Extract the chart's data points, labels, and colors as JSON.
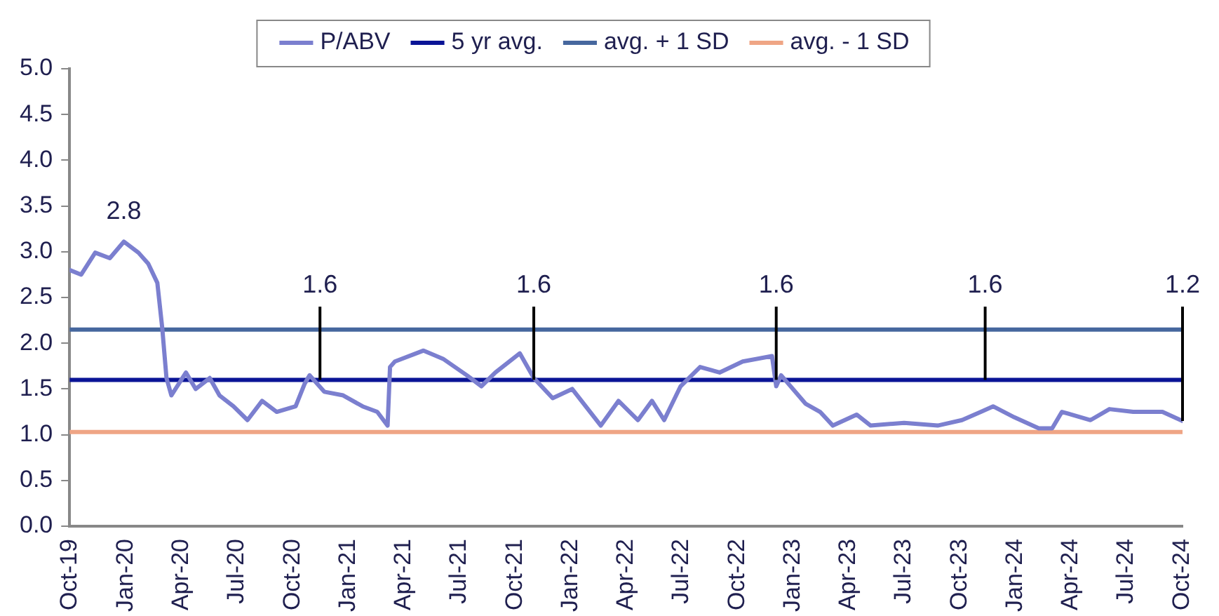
{
  "chart_data": {
    "type": "line",
    "xlim": [
      "2019-10",
      "2024-10"
    ],
    "xticks": [
      {
        "value": "2019-10",
        "label": "Oct-19"
      },
      {
        "value": "2020-01",
        "label": "Jan-20"
      },
      {
        "value": "2020-04",
        "label": "Apr-20"
      },
      {
        "value": "2020-07",
        "label": "Jul-20"
      },
      {
        "value": "2020-10",
        "label": "Oct-20"
      },
      {
        "value": "2021-01",
        "label": "Jan-21"
      },
      {
        "value": "2021-04",
        "label": "Apr-21"
      },
      {
        "value": "2021-07",
        "label": "Jul-21"
      },
      {
        "value": "2021-10",
        "label": "Oct-21"
      },
      {
        "value": "2022-01",
        "label": "Jan-22"
      },
      {
        "value": "2022-04",
        "label": "Apr-22"
      },
      {
        "value": "2022-07",
        "label": "Jul-22"
      },
      {
        "value": "2022-10",
        "label": "Oct-22"
      },
      {
        "value": "2023-01",
        "label": "Jan-23"
      },
      {
        "value": "2023-04",
        "label": "Apr-23"
      },
      {
        "value": "2023-07",
        "label": "Jul-23"
      },
      {
        "value": "2023-10",
        "label": "Oct-23"
      },
      {
        "value": "2024-01",
        "label": "Jan-24"
      },
      {
        "value": "2024-04",
        "label": "Apr-24"
      },
      {
        "value": "2024-07",
        "label": "Jul-24"
      },
      {
        "value": "2024-10",
        "label": "Oct-24"
      }
    ],
    "ylim": [
      0,
      5
    ],
    "yticks": [
      {
        "value": 0,
        "label": "0.0"
      },
      {
        "value": 0.5,
        "label": "0.5"
      },
      {
        "value": 1,
        "label": "1.0"
      },
      {
        "value": 1.5,
        "label": "1.5"
      },
      {
        "value": 2,
        "label": "2.0"
      },
      {
        "value": 2.5,
        "label": "2.5"
      },
      {
        "value": 3,
        "label": "3.0"
      },
      {
        "value": 3.5,
        "label": "3.5"
      },
      {
        "value": 4,
        "label": "4.0"
      },
      {
        "value": 4.5,
        "label": "4.5"
      },
      {
        "value": 5,
        "label": "5.0"
      }
    ],
    "grid": false,
    "legend": "top",
    "marker": "none",
    "line_style": "solid",
    "series": [
      {
        "name": "P/ABV",
        "color": "#7b7fcf",
        "x": [
          "2019-10-01",
          "2019-10-20",
          "2019-11-12",
          "2019-12-06",
          "2019-12-29",
          "2020-01-22",
          "2020-02-07",
          "2020-02-22",
          "2020-03-01",
          "2020-03-08",
          "2020-03-16",
          "2020-04-09",
          "2020-04-25",
          "2020-05-18",
          "2020-06-03",
          "2020-06-26",
          "2020-07-19",
          "2020-08-12",
          "2020-09-05",
          "2020-10-06",
          "2020-10-21",
          "2020-10-29",
          "2020-11-22",
          "2020-12-23",
          "2021-01-24",
          "2021-02-17",
          "2021-03-06",
          "2021-03-10",
          "2021-03-18",
          "2021-05-04",
          "2021-06-05",
          "2021-07-14",
          "2021-08-07",
          "2021-08-30",
          "2021-10-09",
          "2021-11-01",
          "2021-12-02",
          "2022-01-03",
          "2022-02-19",
          "2022-03-20",
          "2022-04-21",
          "2022-05-14",
          "2022-06-03",
          "2022-06-30",
          "2022-08-01",
          "2022-09-02",
          "2022-10-10",
          "2022-11-27",
          "2022-12-04",
          "2022-12-12",
          "2023-01-21",
          "2023-02-14",
          "2023-03-07",
          "2023-04-15",
          "2023-05-08",
          "2023-07-02",
          "2023-08-26",
          "2023-10-05",
          "2023-11-05",
          "2023-11-25",
          "2023-12-30",
          "2024-02-08",
          "2024-03-01",
          "2024-03-17",
          "2024-05-03",
          "2024-06-03",
          "2024-07-12",
          "2024-08-29",
          "2024-10-01"
        ],
        "values": [
          2.8,
          2.75,
          2.99,
          2.93,
          3.11,
          2.99,
          2.87,
          2.66,
          2.17,
          1.62,
          1.43,
          1.68,
          1.5,
          1.62,
          1.43,
          1.31,
          1.16,
          1.37,
          1.25,
          1.31,
          1.56,
          1.65,
          1.47,
          1.43,
          1.31,
          1.25,
          1.1,
          1.74,
          1.8,
          1.92,
          1.83,
          1.65,
          1.53,
          1.68,
          1.89,
          1.62,
          1.4,
          1.5,
          1.1,
          1.37,
          1.16,
          1.37,
          1.16,
          1.53,
          1.74,
          1.68,
          1.8,
          1.86,
          1.53,
          1.65,
          1.34,
          1.25,
          1.1,
          1.22,
          1.1,
          1.13,
          1.1,
          1.16,
          1.25,
          1.31,
          1.19,
          1.07,
          1.07,
          1.25,
          1.16,
          1.28,
          1.25,
          1.25,
          1.15
        ]
      },
      {
        "name": "5 yr avg.",
        "color": "#0a1496",
        "x": [
          "2019-10",
          "2024-10"
        ],
        "values": [
          1.6,
          1.6
        ]
      },
      {
        "name": "avg. + 1 SD",
        "color": "#46679e",
        "x": [
          "2019-10",
          "2024-10"
        ],
        "values": [
          2.15,
          2.15
        ]
      },
      {
        "name": "avg. - 1 SD",
        "color": "#efa585",
        "x": [
          "2019-10",
          "2024-10"
        ],
        "values": [
          1.03,
          1.03
        ]
      }
    ],
    "annotations": [
      {
        "text": "2.8",
        "x": "2019-12-29",
        "y": 3.11
      },
      {
        "text": "1.6",
        "x": "2020-11-15",
        "y": 1.6
      },
      {
        "text": "1.6",
        "x": "2021-11-01",
        "y": 1.6
      },
      {
        "text": "1.6",
        "x": "2022-12-04",
        "y": 1.6
      },
      {
        "text": "1.6",
        "x": "2023-11-12",
        "y": 1.6
      },
      {
        "text": "1.2",
        "x": "2024-10-01",
        "y": 1.15
      }
    ]
  }
}
